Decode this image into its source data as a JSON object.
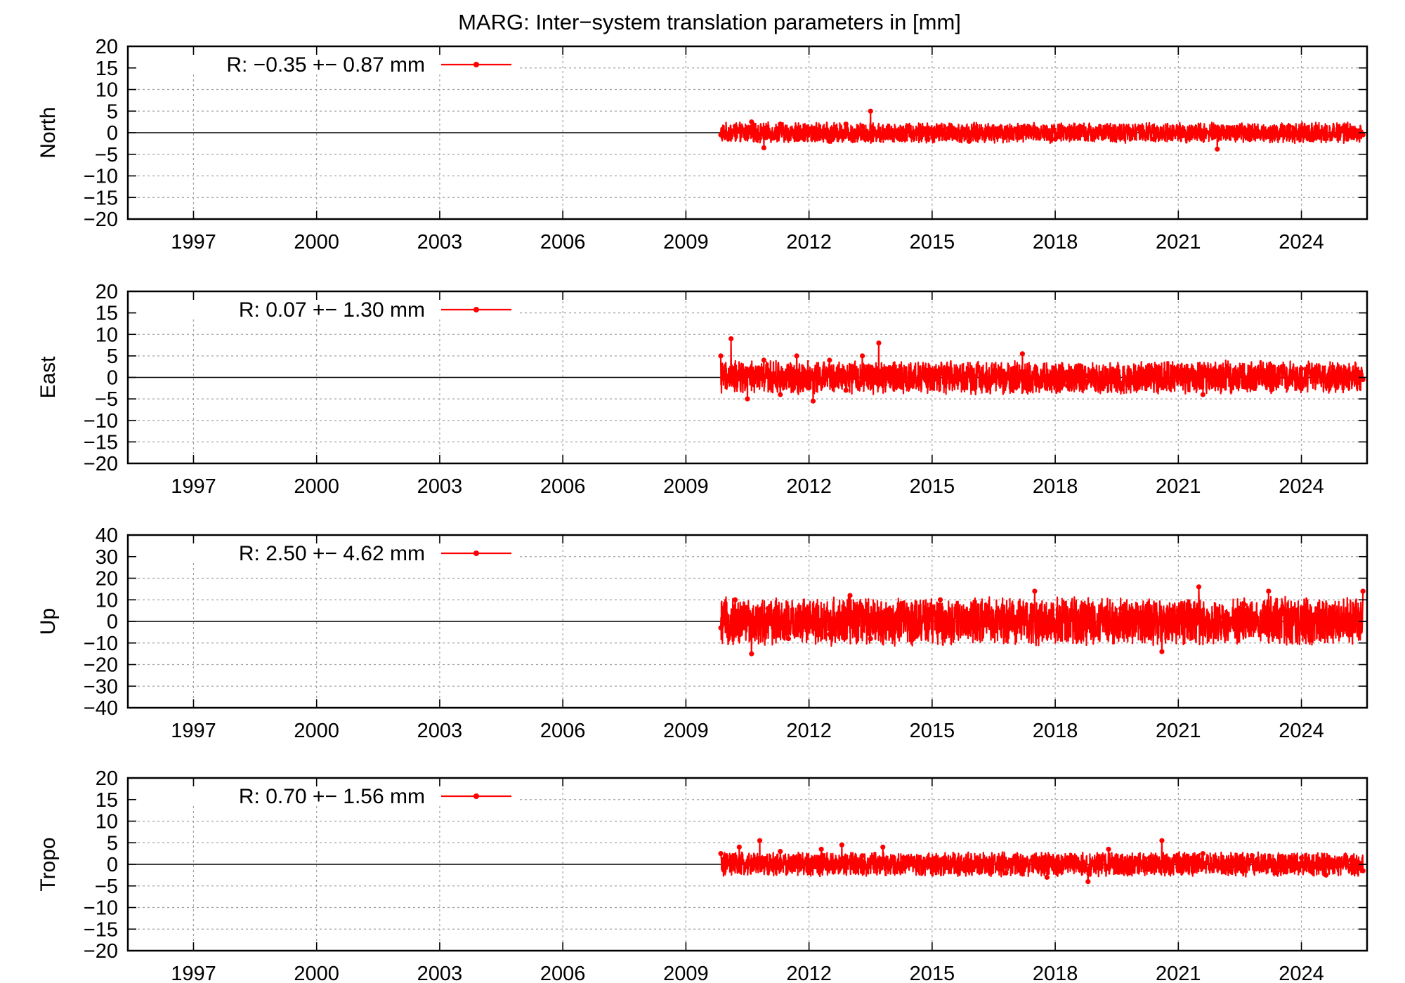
{
  "chart_data": [
    {
      "type": "line",
      "title": "MARG: Inter−system translation parameters in [mm]",
      "ylabel": "North",
      "ylim": [
        -20,
        20
      ],
      "y_ticks": [
        "20",
        "15",
        "10",
        "5",
        "0",
        "−5",
        "−10",
        "−15",
        "−20"
      ],
      "y_tick_values": [
        20,
        15,
        10,
        5,
        0,
        -5,
        -10,
        -15,
        -20
      ],
      "xlim": [
        1995.4,
        2025.6
      ],
      "x_ticks": [
        "1997",
        "2000",
        "2003",
        "2006",
        "2009",
        "2012",
        "2015",
        "2018",
        "2021",
        "2024"
      ],
      "x_tick_values": [
        1997,
        2000,
        2003,
        2006,
        2009,
        2012,
        2015,
        2018,
        2021,
        2024
      ],
      "legend": "R:  −0.35 +− 0.87 mm",
      "legend_position": "top-left",
      "grid": true,
      "series": [
        {
          "color": "#ff0000",
          "x": [
            2009.85,
            2010.2,
            2010.6,
            2010.9,
            2011.3,
            2011.7,
            2012.1,
            2012.5,
            2012.9,
            2013.3,
            2013.5,
            2013.9,
            2014.4,
            2014.9,
            2015.4,
            2015.9,
            2016.4,
            2016.9,
            2017.5,
            2018.0,
            2018.6,
            2019.2,
            2019.8,
            2020.4,
            2021.0,
            2021.6,
            2021.95,
            2022.5,
            2023.1,
            2023.7,
            2024.3,
            2024.9,
            2025.5
          ],
          "y": [
            -0.5,
            1.5,
            2.5,
            -3.5,
            2.0,
            -1.5,
            1.0,
            -2.0,
            2.0,
            1.5,
            5.0,
            -1.0,
            1.5,
            -1.5,
            1.0,
            -2.0,
            0.5,
            -0.5,
            1.0,
            -1.5,
            0.5,
            -1.0,
            0.8,
            -1.5,
            1.0,
            -1.0,
            -3.8,
            0.8,
            -0.5,
            1.5,
            -1.0,
            0.8,
            -0.5
          ],
          "spread": 1.6
        }
      ]
    },
    {
      "type": "line",
      "ylabel": "East",
      "ylim": [
        -20,
        20
      ],
      "y_ticks": [
        "20",
        "15",
        "10",
        "5",
        "0",
        "−5",
        "−10",
        "−15",
        "−20"
      ],
      "y_tick_values": [
        20,
        15,
        10,
        5,
        0,
        -5,
        -10,
        -15,
        -20
      ],
      "xlim": [
        1995.4,
        2025.6
      ],
      "x_ticks": [
        "1997",
        "2000",
        "2003",
        "2006",
        "2009",
        "2012",
        "2015",
        "2018",
        "2021",
        "2024"
      ],
      "x_tick_values": [
        1997,
        2000,
        2003,
        2006,
        2009,
        2012,
        2015,
        2018,
        2021,
        2024
      ],
      "legend": "R:   0.07 +− 1.30 mm",
      "legend_position": "top-left",
      "grid": true,
      "series": [
        {
          "color": "#ff0000",
          "x": [
            2009.85,
            2010.1,
            2010.5,
            2010.9,
            2011.3,
            2011.7,
            2012.1,
            2012.5,
            2012.9,
            2013.3,
            2013.7,
            2014.0,
            2014.5,
            2015.0,
            2015.5,
            2016.0,
            2016.5,
            2017.2,
            2017.8,
            2018.3,
            2018.8,
            2019.4,
            2020.0,
            2020.6,
            2021.2,
            2021.6,
            2022.2,
            2022.8,
            2023.4,
            2024.0,
            2024.6,
            2025.2,
            2025.5
          ],
          "y": [
            5.0,
            9.0,
            -5.0,
            4.0,
            -4.0,
            5.0,
            -5.5,
            4.0,
            -3.0,
            5.0,
            8.0,
            2.0,
            -1.0,
            1.0,
            -1.0,
            0.5,
            -0.5,
            5.5,
            -1.5,
            -2.0,
            0.5,
            -1.0,
            1.0,
            -0.5,
            1.0,
            -4.0,
            0.5,
            1.5,
            -1.0,
            2.0,
            -1.0,
            0.5,
            -0.5
          ],
          "spread": 2.6
        }
      ]
    },
    {
      "type": "line",
      "ylabel": "Up",
      "ylim": [
        -40,
        40
      ],
      "y_ticks": [
        "40",
        "30",
        "20",
        "10",
        "0",
        "−10",
        "−20",
        "−30",
        "−40"
      ],
      "y_tick_values": [
        40,
        30,
        20,
        10,
        0,
        -10,
        -20,
        -30,
        -40
      ],
      "xlim": [
        1995.4,
        2025.6
      ],
      "x_ticks": [
        "1997",
        "2000",
        "2003",
        "2006",
        "2009",
        "2012",
        "2015",
        "2018",
        "2021",
        "2024"
      ],
      "x_tick_values": [
        1997,
        2000,
        2003,
        2006,
        2009,
        2012,
        2015,
        2018,
        2021,
        2024
      ],
      "legend": "R:   2.50 +− 4.62 mm",
      "legend_position": "top-left",
      "grid": true,
      "series": [
        {
          "color": "#ff0000",
          "x": [
            2009.85,
            2010.2,
            2010.6,
            2011.0,
            2011.5,
            2012.0,
            2012.5,
            2013.0,
            2013.5,
            2014.0,
            2014.6,
            2015.2,
            2015.8,
            2016.4,
            2017.0,
            2017.5,
            2018.0,
            2018.5,
            2019.0,
            2019.6,
            2020.2,
            2020.6,
            2021.0,
            2021.5,
            2022.0,
            2022.6,
            2023.2,
            2023.8,
            2024.4,
            2025.0,
            2025.5
          ],
          "y": [
            -3.0,
            10.0,
            -15.0,
            6.0,
            -8.0,
            3.0,
            -6.0,
            12.0,
            -8.0,
            5.0,
            0.5,
            10.0,
            -2.0,
            4.0,
            2.0,
            14.0,
            -2.0,
            4.0,
            -5.0,
            6.0,
            2.0,
            -14.0,
            5.0,
            16.0,
            2.0,
            8.0,
            14.0,
            4.0,
            6.0,
            3.0,
            14.0
          ],
          "spread": 7.5
        }
      ]
    },
    {
      "type": "line",
      "ylabel": "Tropo",
      "ylim": [
        -20,
        20
      ],
      "y_ticks": [
        "20",
        "15",
        "10",
        "5",
        "0",
        "−5",
        "−10",
        "−15",
        "−20"
      ],
      "y_tick_values": [
        20,
        15,
        10,
        5,
        0,
        -5,
        -10,
        -15,
        -20
      ],
      "xlim": [
        1995.4,
        2025.6
      ],
      "x_ticks": [
        "1997",
        "2000",
        "2003",
        "2006",
        "2009",
        "2012",
        "2015",
        "2018",
        "2021",
        "2024"
      ],
      "x_tick_values": [
        1997,
        2000,
        2003,
        2006,
        2009,
        2012,
        2015,
        2018,
        2021,
        2024
      ],
      "legend": "R:   0.70 +− 1.56 mm",
      "legend_position": "top-left",
      "grid": true,
      "series": [
        {
          "color": "#ff0000",
          "x": [
            2009.85,
            2010.3,
            2010.8,
            2011.3,
            2011.8,
            2012.3,
            2012.8,
            2013.3,
            2013.8,
            2014.3,
            2014.8,
            2015.3,
            2015.8,
            2016.3,
            2016.8,
            2017.3,
            2017.8,
            2018.3,
            2018.8,
            2019.3,
            2019.8,
            2020.3,
            2020.6,
            2021.0,
            2021.6,
            2022.2,
            2022.8,
            2023.4,
            2024.0,
            2024.6,
            2025.2,
            2025.5
          ],
          "y": [
            2.5,
            4.0,
            5.5,
            3.0,
            1.0,
            3.5,
            4.5,
            2.0,
            4.0,
            1.5,
            -1.0,
            1.5,
            -1.5,
            1.0,
            -2.0,
            1.0,
            -3.0,
            1.5,
            -4.0,
            3.5,
            -2.0,
            1.5,
            5.5,
            -1.5,
            2.5,
            -1.0,
            2.0,
            -2.0,
            1.5,
            -2.5,
            1.0,
            -1.5
          ],
          "spread": 1.9
        }
      ]
    }
  ]
}
